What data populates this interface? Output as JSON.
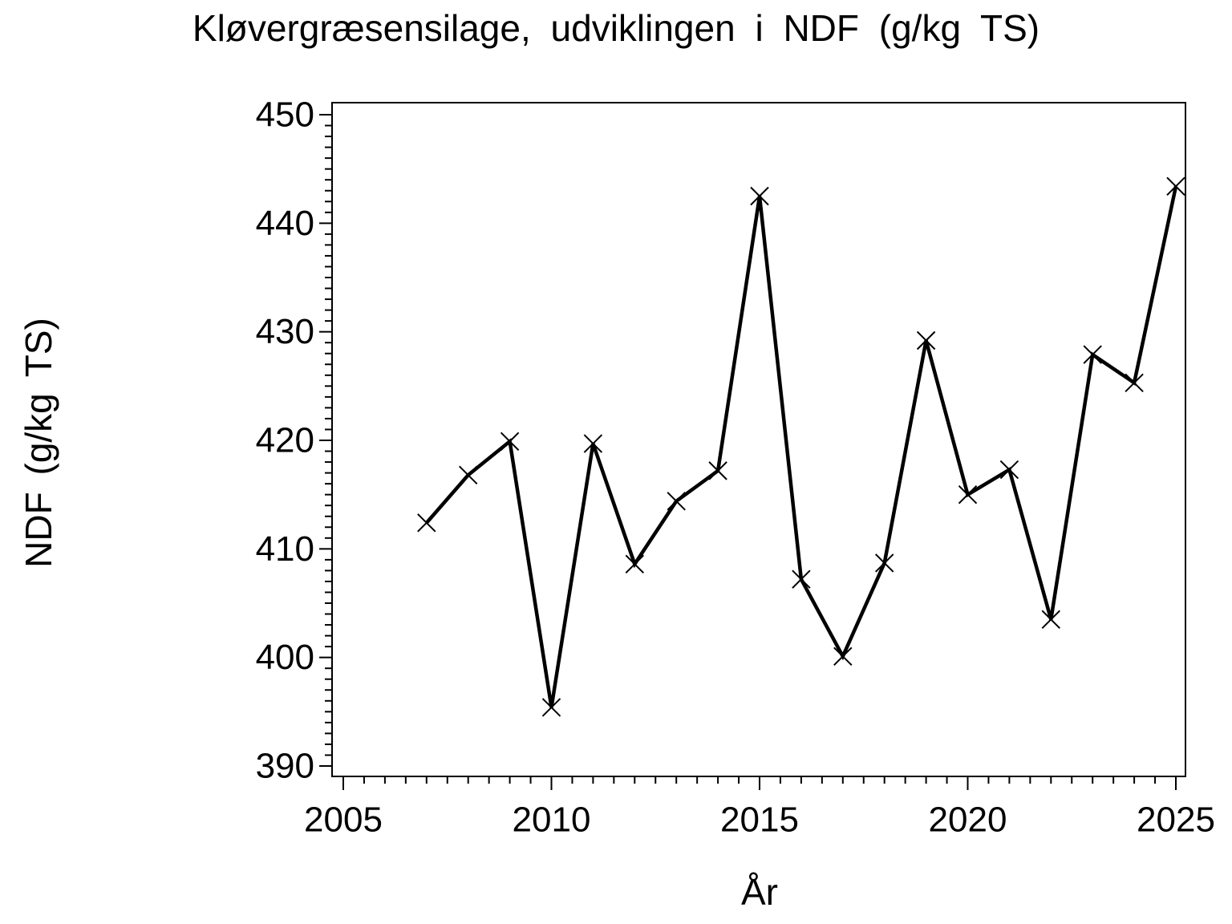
{
  "chart_data": {
    "type": "line",
    "title": "Kløvergræsensilage, udviklingen i NDF (g/kg TS)",
    "xlabel": "År",
    "ylabel": "NDF (g/kg TS)",
    "x": [
      2007,
      2008,
      2009,
      2010,
      2011,
      2012,
      2013,
      2014,
      2015,
      2016,
      2017,
      2018,
      2019,
      2020,
      2021,
      2022,
      2023,
      2024,
      2025
    ],
    "values": [
      412.4,
      416.8,
      419.9,
      395.4,
      419.7,
      408.6,
      414.4,
      417.2,
      442.5,
      407.2,
      400.1,
      408.7,
      429.2,
      415.0,
      417.3,
      403.5,
      427.9,
      425.3,
      443.4
    ],
    "xlim": [
      2005,
      2025
    ],
    "ylim": [
      390,
      450
    ],
    "x_major_ticks": [
      2005,
      2010,
      2015,
      2020,
      2025
    ],
    "y_major_ticks": [
      390,
      400,
      410,
      420,
      430,
      440,
      450
    ],
    "x_minor_step": 0.5,
    "y_minor_step": 1,
    "marker": "x",
    "line_color": "#000000",
    "background_color": "#ffffff",
    "grid": false,
    "legend": null
  }
}
